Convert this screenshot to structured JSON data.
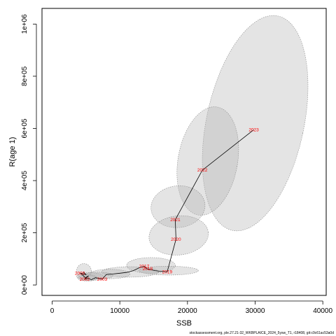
{
  "chart_data": {
    "type": "line",
    "title": "",
    "xlabel": "SSB",
    "ylabel": "R(age 1)",
    "xlim": [
      -1500,
      40500
    ],
    "ylim": [
      -40000,
      1060000
    ],
    "x_ticks": [
      0,
      10000,
      20000,
      30000,
      40000
    ],
    "x_tick_labels": [
      "0",
      "10000",
      "20000",
      "30000",
      "40000"
    ],
    "y_ticks": [
      0,
      200000,
      400000,
      600000,
      800000,
      1000000
    ],
    "y_tick_labels": [
      "0e+00",
      "2e+05",
      "4e+05",
      "6e+05",
      "8e+05",
      "1e+06"
    ],
    "grid": false,
    "series": [
      {
        "points": [
          {
            "label": "",
            "x": 4600,
            "y": 50000
          },
          {
            "label": "",
            "x": 5000,
            "y": 40000
          },
          {
            "label": "",
            "x": 4200,
            "y": 45000
          },
          {
            "label": "",
            "x": 4900,
            "y": 28000
          },
          {
            "label": "",
            "x": 5400,
            "y": 35000
          },
          {
            "label": "",
            "x": 4800,
            "y": 22000
          },
          {
            "label": "",
            "x": 5300,
            "y": 25000
          },
          {
            "label": "",
            "x": 5800,
            "y": 20000
          },
          {
            "label": "",
            "x": 6400,
            "y": 28000
          },
          {
            "label": "2003",
            "x": 7400,
            "y": 22000
          },
          {
            "label": "",
            "x": 8000,
            "y": 40000
          },
          {
            "label": "",
            "x": 9000,
            "y": 42000
          },
          {
            "label": "",
            "x": 10000,
            "y": 45000
          },
          {
            "label": "",
            "x": 11000,
            "y": 48000
          },
          {
            "label": "",
            "x": 12000,
            "y": 55000
          },
          {
            "label": "",
            "x": 12800,
            "y": 65000
          },
          {
            "label": "",
            "x": 13600,
            "y": 72000
          },
          {
            "label": "",
            "x": 14000,
            "y": 62000
          },
          {
            "label": "",
            "x": 15200,
            "y": 55000
          },
          {
            "label": "2019",
            "x": 17000,
            "y": 50000
          },
          {
            "label": "2020",
            "x": 18300,
            "y": 175000
          },
          {
            "label": "2021",
            "x": 18200,
            "y": 250000
          },
          {
            "label": "2022",
            "x": 22200,
            "y": 440000
          },
          {
            "label": "2023",
            "x": 29800,
            "y": 595000
          }
        ],
        "extra_labels": [
          {
            "label": "2000",
            "x": 4100,
            "y": 45000
          },
          {
            "label": "2002",
            "x": 4800,
            "y": 22000
          },
          {
            "label": "2017",
            "x": 13600,
            "y": 72000
          },
          {
            "label": "2018",
            "x": 14100,
            "y": 62000
          }
        ]
      }
    ],
    "ellipses": [
      {
        "cx": 30000,
        "cy": 620000,
        "rx": 7200,
        "ry": 420000,
        "rot": -12
      },
      {
        "cx": 23000,
        "cy": 475000,
        "rx": 4400,
        "ry": 210000,
        "rot": -10
      },
      {
        "cx": 18600,
        "cy": 300000,
        "rx": 4000,
        "ry": 80000,
        "rot": 6
      },
      {
        "cx": 18700,
        "cy": 190000,
        "rx": 4400,
        "ry": 75000,
        "rot": 6
      },
      {
        "cx": 14600,
        "cy": 75000,
        "rx": 3600,
        "ry": 30000,
        "rot": 0
      },
      {
        "cx": 17200,
        "cy": 55000,
        "rx": 4400,
        "ry": 17000,
        "rot": 0
      },
      {
        "cx": 11500,
        "cy": 50000,
        "rx": 4200,
        "ry": 20000,
        "rot": 0
      },
      {
        "cx": 8500,
        "cy": 42000,
        "rx": 3000,
        "ry": 18000,
        "rot": 0
      },
      {
        "cx": 4700,
        "cy": 52000,
        "rx": 1100,
        "ry": 30000,
        "rot": 0
      },
      {
        "cx": 5600,
        "cy": 32000,
        "rx": 2000,
        "ry": 15000,
        "rot": 0
      },
      {
        "cx": 5200,
        "cy": 27000,
        "rx": 1400,
        "ry": 12000,
        "rot": 0
      },
      {
        "cx": 6800,
        "cy": 36000,
        "rx": 2200,
        "ry": 13000,
        "rot": 0
      }
    ],
    "colors": {
      "line": "#000000",
      "label": "#ff0000",
      "ellipse_fill": "#b3b3b3",
      "ellipse_stroke": "#888888"
    }
  },
  "footer_text": "stockassessment.org, ple.27.21-32_WKBPLAICE_2024_5ysw_T1, r18408, git:c9c61ac53a0d"
}
